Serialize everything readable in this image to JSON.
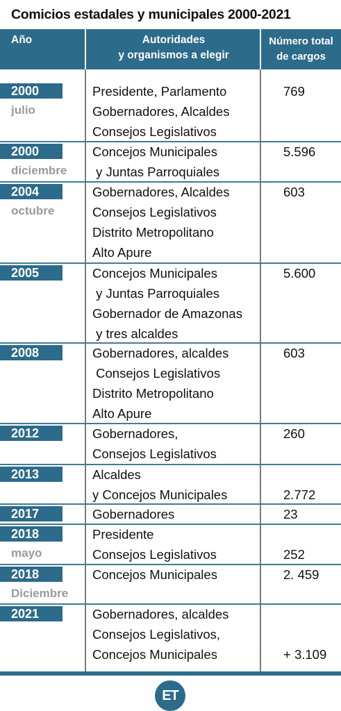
{
  "title": "Comicios  estadales y municipales 2000-2021",
  "headers": {
    "year": "Año",
    "authorities_line1": "Autoridades",
    "authorities_line2": "y organismos a  elegir",
    "total_line1": "Número total",
    "total_line2": "de  cargos"
  },
  "rows": [
    {
      "year": "2000",
      "month": "julio",
      "lines": [
        "Presidente, Parlamento",
        "Gobernadores, Alcaldes",
        "Consejos Legislativos"
      ],
      "total": "769"
    },
    {
      "year": "2000",
      "month": "diciembre",
      "lines": [
        "Concejos Municipales",
        " y Juntas Parroquiales"
      ],
      "total": "5.596"
    },
    {
      "year": "2004",
      "month": "octubre",
      "lines": [
        "Gobernadores, Alcaldes",
        "Consejos Legislativos",
        "Distrito Metropolitano",
        "Alto Apure"
      ],
      "total": "603"
    },
    {
      "year": "2005",
      "month": "",
      "lines": [
        "Concejos Municipales",
        " y Juntas Parroquiales",
        "Gobernador de Amazonas",
        " y tres alcaldes"
      ],
      "total": "5.600"
    },
    {
      "year": "2008",
      "month": "",
      "lines": [
        "Gobernadores, alcaldes",
        " Consejos Legislativos",
        "Distrito Metropolitano",
        "Alto Apure"
      ],
      "total": "603"
    },
    {
      "year": "2012",
      "month": "",
      "lines": [
        "Gobernadores,",
        "Consejos Legislativos"
      ],
      "total": "260"
    },
    {
      "year": "2013",
      "month": "",
      "lines": [
        "Alcaldes",
        "y Concejos Municipales"
      ],
      "total": "2.772"
    },
    {
      "year": "2017",
      "month": "",
      "lines": [
        "Gobernadores"
      ],
      "total": "23"
    },
    {
      "year": "2018",
      "month": "mayo",
      "lines": [
        "Presidente",
        "Consejos Legislativos"
      ],
      "total": "252"
    },
    {
      "year": "2018",
      "month": "Diciembre",
      "lines": [
        "Concejos Municipales"
      ],
      "total": "2. 459"
    },
    {
      "year": "2021",
      "month": "",
      "lines": [
        "Gobernadores, alcaldes",
        "Consejos Legislativos,",
        "Concejos Municipales"
      ],
      "total": "+ 3.109"
    }
  ],
  "logo": "ET",
  "colors": {
    "accent": "#2c6b8a",
    "month_gray": "#9a9a9a"
  }
}
